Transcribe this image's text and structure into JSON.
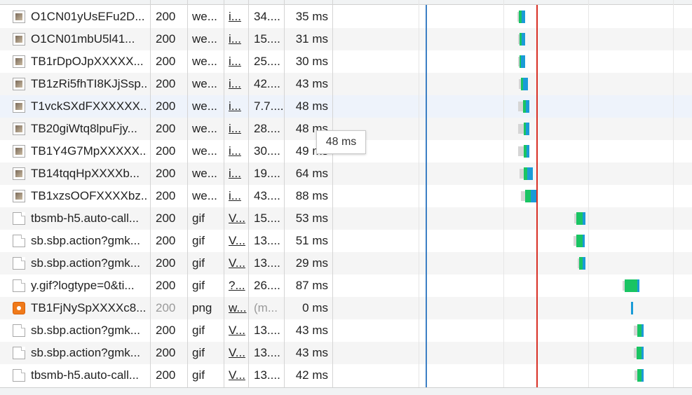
{
  "tooltip": {
    "text": "48 ms"
  },
  "rows": [
    {
      "name": "O1CN01yUsEFu2D...",
      "status": "200",
      "type": "we...",
      "initiator": "i...",
      "size": "34....",
      "time": "35 ms",
      "icon": "image-thumbnail-icon"
    },
    {
      "name": "O1CN01mbU5l41...",
      "status": "200",
      "type": "we...",
      "initiator": "i...",
      "size": "15....",
      "time": "31 ms",
      "icon": "image-thumbnail-icon"
    },
    {
      "name": "TB1rDpOJpXXXXX...",
      "status": "200",
      "type": "we...",
      "initiator": "i...",
      "size": "25....",
      "time": "30 ms",
      "icon": "image-thumbnail-icon"
    },
    {
      "name": "TB1zRi5fhTI8KJjSsp...",
      "status": "200",
      "type": "we...",
      "initiator": "i...",
      "size": "42....",
      "time": "43 ms",
      "icon": "image-thumbnail-icon"
    },
    {
      "name": "T1vckSXdFXXXXXX...",
      "status": "200",
      "type": "we...",
      "initiator": "i...",
      "size": "7.7....",
      "time": "48 ms",
      "icon": "image-thumbnail-icon"
    },
    {
      "name": "TB20giWtq8lpuFjy...",
      "status": "200",
      "type": "we...",
      "initiator": "i...",
      "size": "28....",
      "time": "48 ms",
      "icon": "image-thumbnail-icon"
    },
    {
      "name": "TB1Y4G7MpXXXXX...",
      "status": "200",
      "type": "we...",
      "initiator": "i...",
      "size": "30....",
      "time": "49 ms",
      "icon": "image-thumbnail-icon"
    },
    {
      "name": "TB14tqqHpXXXXb...",
      "status": "200",
      "type": "we...",
      "initiator": "i...",
      "size": "19....",
      "time": "64 ms",
      "icon": "image-thumbnail-icon"
    },
    {
      "name": "TB1xzsOOFXXXXbz...",
      "status": "200",
      "type": "we...",
      "initiator": "i...",
      "size": "43....",
      "time": "88 ms",
      "icon": "image-thumbnail-icon"
    },
    {
      "name": "tbsmb-h5.auto-call...",
      "status": "200",
      "type": "gif",
      "initiator": "V...",
      "size": "15....",
      "time": "53 ms",
      "icon": "document-icon"
    },
    {
      "name": "sb.sbp.action?gmk...",
      "status": "200",
      "type": "gif",
      "initiator": "V...",
      "size": "13....",
      "time": "51 ms",
      "icon": "document-icon"
    },
    {
      "name": "sb.sbp.action?gmk...",
      "status": "200",
      "type": "gif",
      "initiator": "V...",
      "size": "13....",
      "time": "29 ms",
      "icon": "document-icon"
    },
    {
      "name": "y.gif?logtype=0&ti...",
      "status": "200",
      "type": "gif",
      "initiator": "?...",
      "size": "26....",
      "time": "87 ms",
      "icon": "document-icon"
    },
    {
      "name": "TB1FjNySpXXXXc8...",
      "status": "200",
      "type": "png",
      "initiator": "w...",
      "size": "(m...",
      "time": "0 ms",
      "icon": "png-image-icon",
      "muted": true
    },
    {
      "name": "sb.sbp.action?gmk...",
      "status": "200",
      "type": "gif",
      "initiator": "V...",
      "size": "13....",
      "time": "43 ms",
      "icon": "document-icon"
    },
    {
      "name": "sb.sbp.action?gmk...",
      "status": "200",
      "type": "gif",
      "initiator": "V...",
      "size": "13....",
      "time": "43 ms",
      "icon": "document-icon"
    },
    {
      "name": "tbsmb-h5.auto-call...",
      "status": "200",
      "type": "gif",
      "initiator": "V...",
      "size": "13....",
      "time": "42 ms",
      "icon": "document-icon"
    }
  ],
  "waterfall": {
    "colors": {
      "waiting": "#d6d6d6",
      "download": "#19c463",
      "receiving": "#1a9bd7",
      "dom_content_loaded": "#3b7fc4",
      "load": "#d93025"
    }
  }
}
